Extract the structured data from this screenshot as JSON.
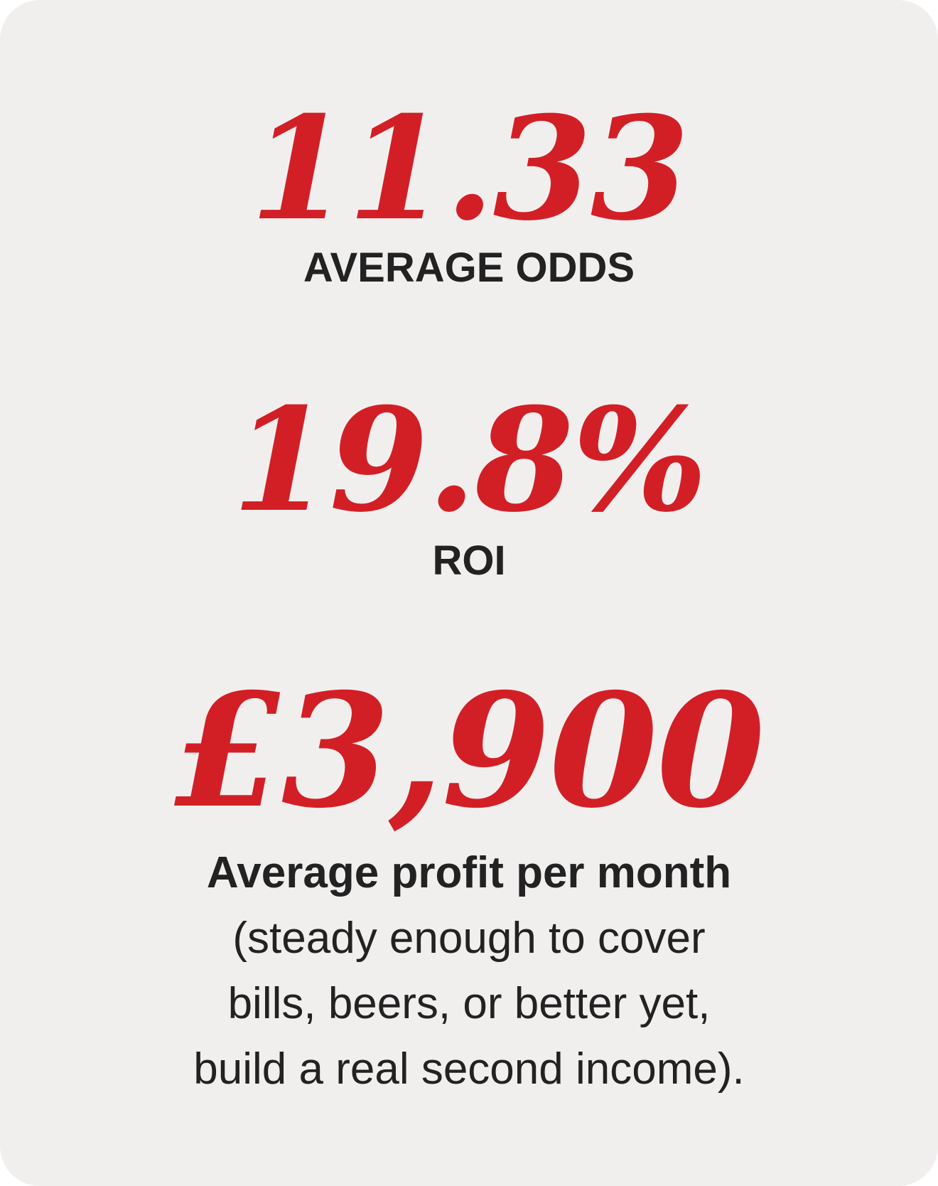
{
  "stats": [
    {
      "value": "11.33",
      "label": "AVERAGE ODDS"
    },
    {
      "value": "19.8%",
      "label": "ROI"
    },
    {
      "value": "£3,900",
      "label": "Average profit per month"
    }
  ],
  "description_lines": [
    "(steady enough to cover",
    "bills, beers, or better yet,",
    "build a real second income)."
  ],
  "colors": {
    "accent": "#d21f26",
    "text": "#222222",
    "card_background": "#f1efee"
  }
}
